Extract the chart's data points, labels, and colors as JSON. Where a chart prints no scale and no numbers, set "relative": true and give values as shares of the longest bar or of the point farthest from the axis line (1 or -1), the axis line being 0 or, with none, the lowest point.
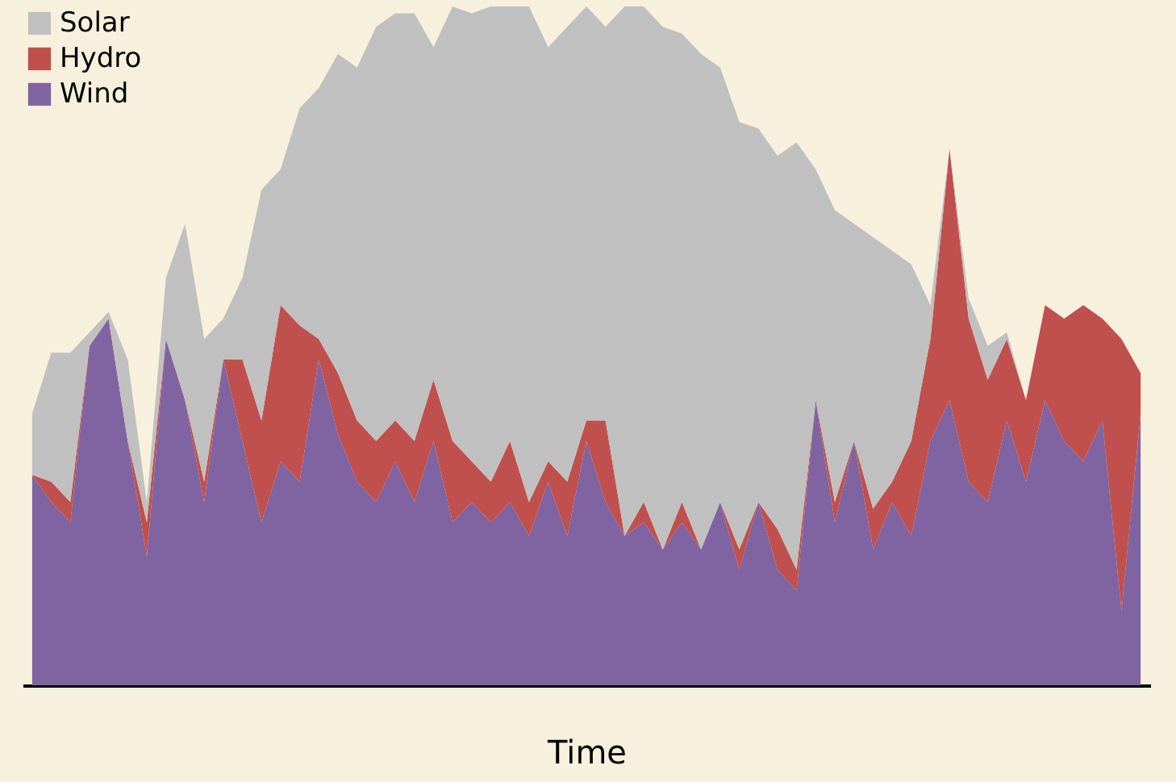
{
  "chart_data": {
    "type": "area",
    "xlabel": "Time",
    "relative": true,
    "stacked": true,
    "legend": "top left",
    "categories": [
      null,
      null,
      null,
      null,
      null,
      null,
      null,
      null,
      null,
      null,
      null,
      null,
      null,
      null,
      null,
      null,
      null,
      null,
      null,
      null,
      null,
      null,
      null,
      null,
      null,
      null,
      null,
      null,
      null,
      null,
      null,
      null,
      null,
      null,
      null,
      null,
      null,
      null,
      null,
      null,
      null,
      null,
      null,
      null,
      null,
      null,
      null,
      null,
      null,
      null,
      null,
      null,
      null,
      null,
      null,
      null,
      null,
      null,
      null
    ],
    "series": [
      {
        "name": "Wind",
        "color": "#8064a2",
        "values": [
          0.31,
          0.27,
          0.24,
          0.5,
          0.54,
          0.36,
          0.19,
          0.51,
          0.42,
          0.27,
          0.48,
          0.36,
          0.24,
          0.33,
          0.3,
          0.48,
          0.37,
          0.3,
          0.27,
          0.33,
          0.27,
          0.36,
          0.24,
          0.27,
          0.24,
          0.27,
          0.22,
          0.3,
          0.22,
          0.36,
          0.27,
          0.22,
          0.24,
          0.2,
          0.24,
          0.2,
          0.27,
          0.17,
          0.27,
          0.17,
          0.14,
          0.42,
          0.24,
          0.36,
          0.2,
          0.27,
          0.22,
          0.36,
          0.42,
          0.3,
          0.27,
          0.39,
          0.3,
          0.42,
          0.36,
          0.33,
          0.39,
          0.11,
          0.4
        ]
      },
      {
        "name": "Hydro",
        "color": "#c0504d",
        "values": [
          0,
          0.03,
          0.03,
          0,
          0,
          0,
          0.05,
          0,
          0,
          0.03,
          0,
          0.12,
          0.15,
          0.23,
          0.23,
          0.03,
          0.09,
          0.09,
          0.09,
          0.06,
          0.09,
          0.09,
          0.12,
          0.06,
          0.06,
          0.09,
          0.05,
          0.03,
          0.08,
          0.03,
          0.12,
          0,
          0.03,
          0,
          0.03,
          0,
          0,
          0.03,
          0,
          0.06,
          0.03,
          0,
          0.03,
          0,
          0.06,
          0.03,
          0.14,
          0.15,
          0.37,
          0.24,
          0.18,
          0.12,
          0.12,
          0.14,
          0.18,
          0.23,
          0.15,
          0.4,
          0.06
        ]
      },
      {
        "name": "Solar",
        "color": "#c0c0c0",
        "values": [
          0.09,
          0.19,
          0.22,
          0.02,
          0.01,
          0.12,
          0.03,
          0.09,
          0.26,
          0.21,
          0.06,
          0.12,
          0.34,
          0.2,
          0.32,
          0.37,
          0.47,
          0.52,
          0.61,
          0.6,
          0.63,
          0.49,
          0.64,
          0.66,
          0.7,
          0.64,
          0.73,
          0.61,
          0.67,
          0.61,
          0.58,
          0.78,
          0.73,
          0.77,
          0.69,
          0.73,
          0.64,
          0.63,
          0.55,
          0.55,
          0.63,
          0.34,
          0.43,
          0.32,
          0.4,
          0.34,
          0.26,
          0.05,
          0,
          0.03,
          0.05,
          0.01,
          0,
          0,
          0,
          0,
          0,
          0,
          0
        ]
      }
    ]
  }
}
